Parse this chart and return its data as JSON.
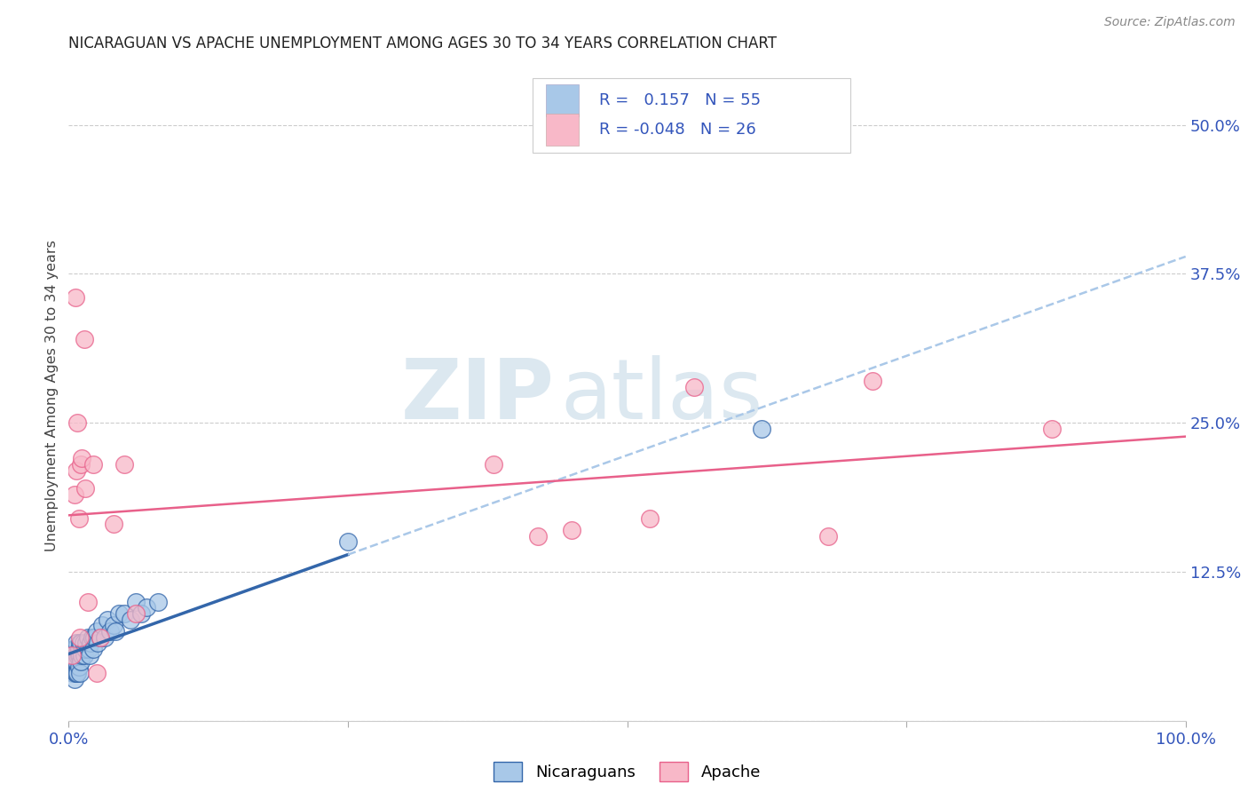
{
  "title": "NICARAGUAN VS APACHE UNEMPLOYMENT AMONG AGES 30 TO 34 YEARS CORRELATION CHART",
  "source": "Source: ZipAtlas.com",
  "ylabel": "Unemployment Among Ages 30 to 34 years",
  "legend_label1": "Nicaraguans",
  "legend_label2": "Apache",
  "r1": 0.157,
  "n1": 55,
  "r2": -0.048,
  "n2": 26,
  "color_blue": "#a8c8e8",
  "color_pink": "#f8b8c8",
  "color_blue_line": "#3366aa",
  "color_pink_line": "#e8608a",
  "color_dashed": "#aac8e8",
  "xlim": [
    0.0,
    1.0
  ],
  "ylim": [
    0.0,
    0.545
  ],
  "yticks": [
    0.0,
    0.125,
    0.25,
    0.375,
    0.5
  ],
  "ytick_labels": [
    "",
    "12.5%",
    "25.0%",
    "37.5%",
    "50.0%"
  ],
  "nicaraguan_x": [
    0.003,
    0.003,
    0.004,
    0.004,
    0.004,
    0.005,
    0.005,
    0.005,
    0.005,
    0.006,
    0.006,
    0.006,
    0.007,
    0.007,
    0.007,
    0.008,
    0.008,
    0.009,
    0.009,
    0.009,
    0.01,
    0.01,
    0.01,
    0.011,
    0.011,
    0.012,
    0.013,
    0.014,
    0.015,
    0.016,
    0.017,
    0.018,
    0.019,
    0.02,
    0.021,
    0.022,
    0.023,
    0.025,
    0.026,
    0.028,
    0.03,
    0.032,
    0.035,
    0.037,
    0.04,
    0.042,
    0.045,
    0.05,
    0.055,
    0.06,
    0.065,
    0.07,
    0.08,
    0.25,
    0.62
  ],
  "nicaraguan_y": [
    0.05,
    0.055,
    0.04,
    0.045,
    0.06,
    0.035,
    0.045,
    0.05,
    0.06,
    0.04,
    0.05,
    0.055,
    0.04,
    0.05,
    0.065,
    0.04,
    0.055,
    0.045,
    0.055,
    0.06,
    0.04,
    0.055,
    0.065,
    0.05,
    0.065,
    0.055,
    0.065,
    0.055,
    0.06,
    0.065,
    0.07,
    0.06,
    0.055,
    0.065,
    0.07,
    0.06,
    0.07,
    0.075,
    0.065,
    0.07,
    0.08,
    0.07,
    0.085,
    0.075,
    0.08,
    0.075,
    0.09,
    0.09,
    0.085,
    0.1,
    0.09,
    0.095,
    0.1,
    0.15,
    0.245
  ],
  "apache_x": [
    0.003,
    0.005,
    0.006,
    0.007,
    0.008,
    0.009,
    0.01,
    0.011,
    0.012,
    0.014,
    0.015,
    0.017,
    0.022,
    0.025,
    0.028,
    0.04,
    0.05,
    0.06,
    0.38,
    0.42,
    0.45,
    0.52,
    0.56,
    0.68,
    0.72,
    0.88
  ],
  "apache_y": [
    0.055,
    0.19,
    0.355,
    0.21,
    0.25,
    0.17,
    0.07,
    0.215,
    0.22,
    0.32,
    0.195,
    0.1,
    0.215,
    0.04,
    0.07,
    0.165,
    0.215,
    0.09,
    0.215,
    0.155,
    0.16,
    0.17,
    0.28,
    0.155,
    0.285,
    0.245
  ],
  "background_color": "#ffffff",
  "grid_color": "#cccccc",
  "watermark_zip": "ZIP",
  "watermark_atlas": "atlas",
  "watermark_color": "#dce8f0"
}
